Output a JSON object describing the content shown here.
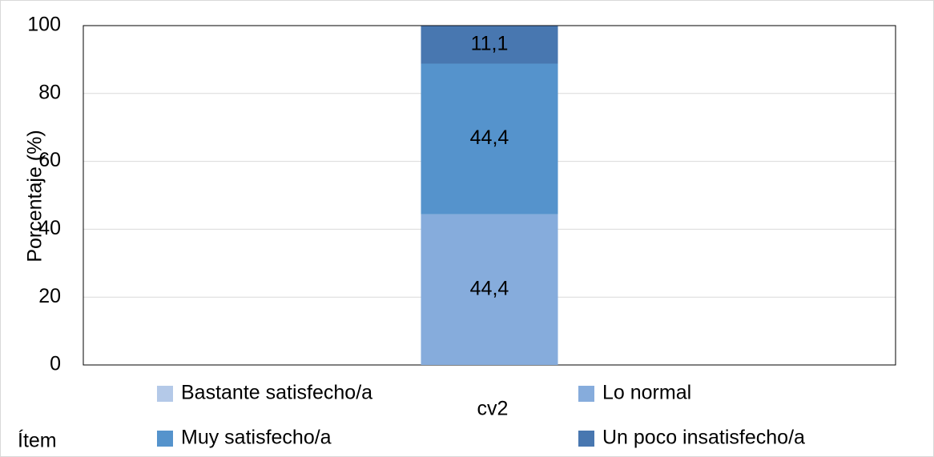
{
  "chart_data": {
    "type": "stacked_bar",
    "y_label": "Porcentaje (%)",
    "x_label": "Ítem",
    "categories": [
      "cv2"
    ],
    "series": [
      {
        "name": "Bastante satisfecho/a",
        "color": "#b4c9e8",
        "values": [
          0
        ]
      },
      {
        "name": "Lo normal",
        "color": "#86acdc",
        "values": [
          44.4
        ],
        "value_labels": [
          "44,4"
        ]
      },
      {
        "name": "Muy satisfecho/a",
        "color": "#5593cc",
        "values": [
          44.4
        ],
        "value_labels": [
          "44,4"
        ]
      },
      {
        "name": "Un poco insatisfecho/a",
        "color": "#4877b0",
        "values": [
          11.1
        ],
        "value_labels": [
          "11,1"
        ]
      }
    ],
    "ylim": [
      0,
      100
    ],
    "yticks": [
      0,
      20,
      40,
      60,
      80,
      100
    ],
    "grid": true
  }
}
